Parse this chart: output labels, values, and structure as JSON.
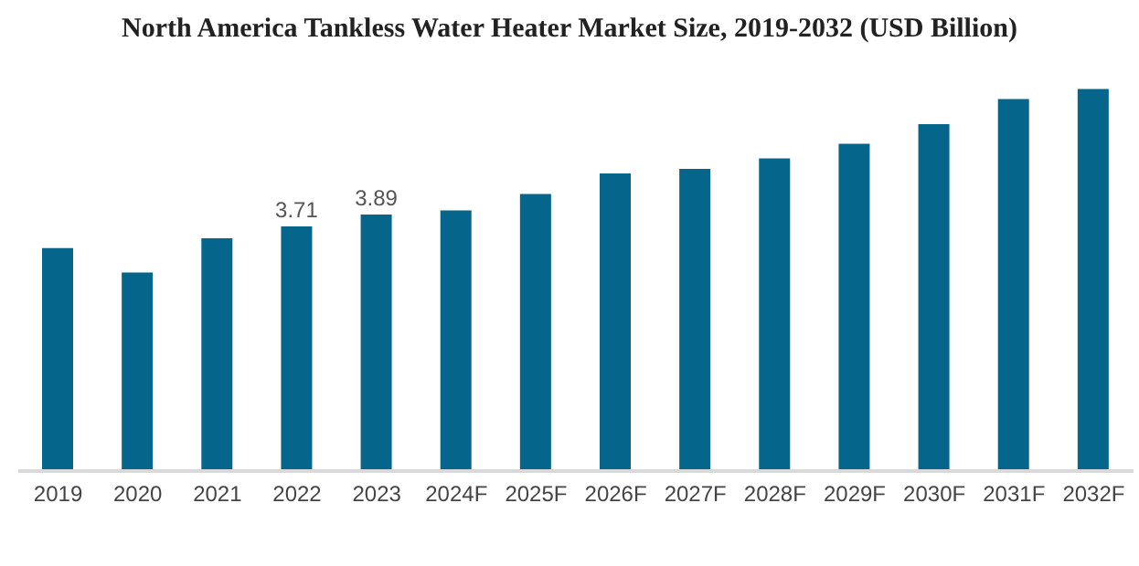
{
  "chart_data": {
    "type": "bar",
    "title": "North America Tankless Water Heater Market Size, 2019-2032 (USD Billion)",
    "categories": [
      "2019",
      "2020",
      "2021",
      "2022",
      "2023",
      "2024F",
      "2025F",
      "2026F",
      "2027F",
      "2028F",
      "2029F",
      "2030F",
      "2031F",
      "2032F"
    ],
    "values": [
      3.38,
      3.01,
      3.53,
      3.71,
      3.89,
      3.95,
      4.2,
      4.51,
      4.58,
      4.74,
      4.96,
      5.26,
      5.64,
      5.79
    ],
    "value_labels": [
      null,
      null,
      null,
      "3.71",
      "3.89",
      null,
      null,
      null,
      null,
      null,
      null,
      null,
      null,
      null
    ],
    "color": "#05658a",
    "grid": false,
    "legend": false
  }
}
